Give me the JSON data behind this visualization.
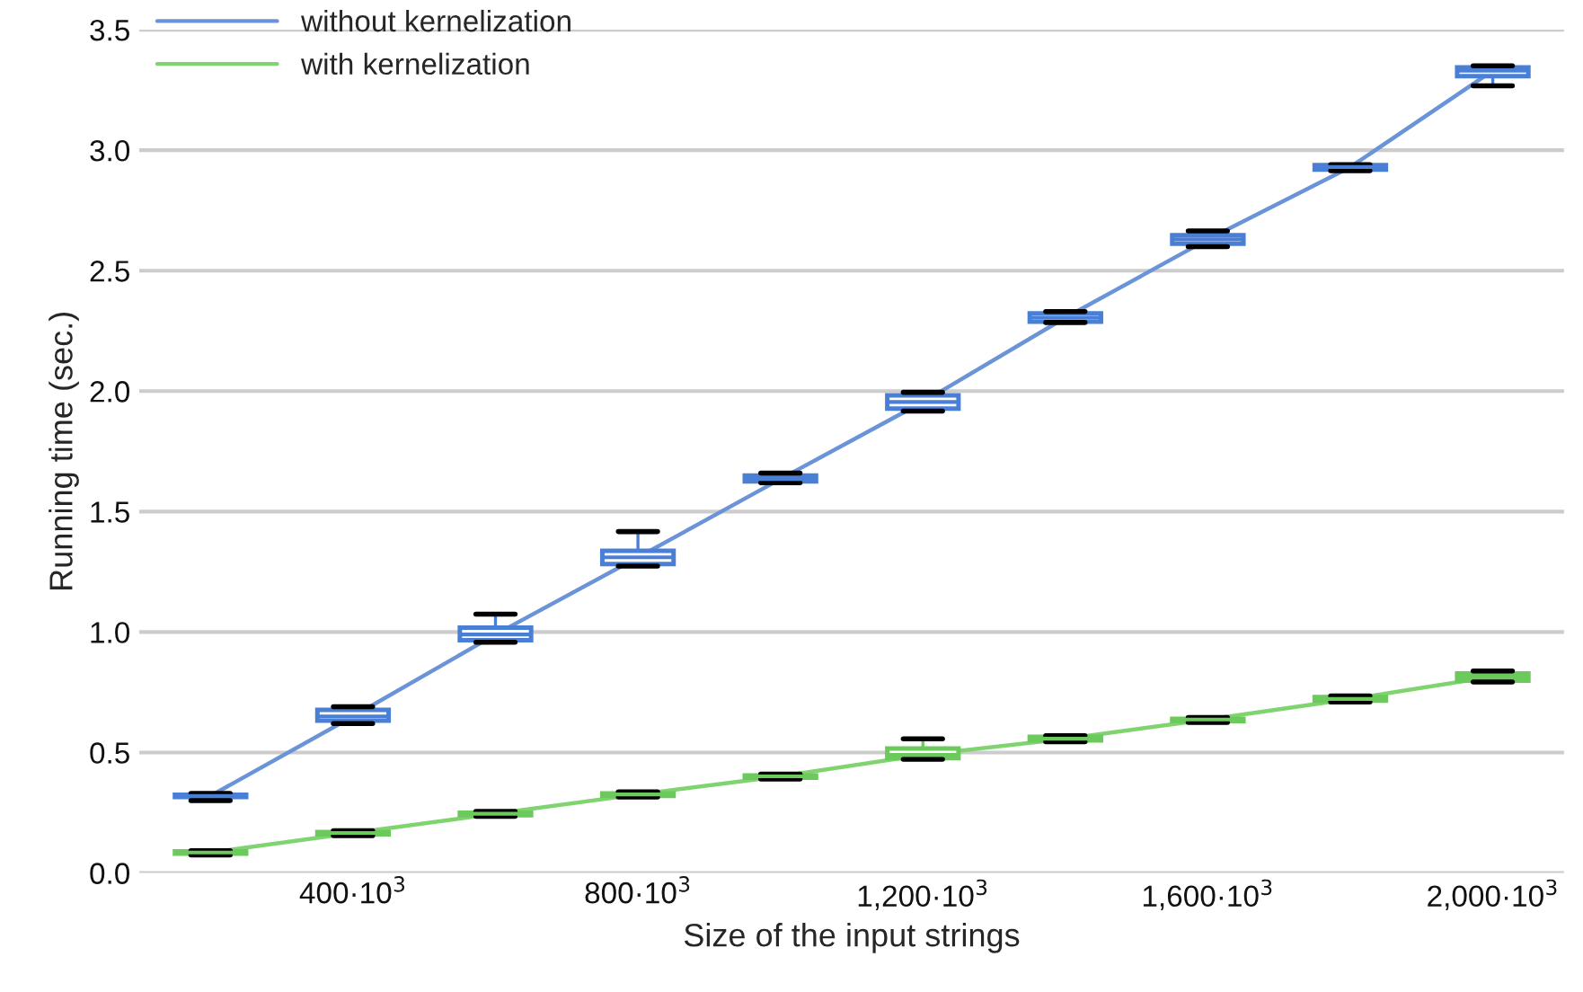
{
  "chart_data": {
    "type": "box",
    "xlabel": "Size of the input strings",
    "ylabel": "Running time (sec.)",
    "x": [
      200000,
      400000,
      600000,
      800000,
      1000000,
      1200000,
      1400000,
      1600000,
      1800000,
      2000000
    ],
    "xlim": [
      100000,
      2100000
    ],
    "xticks": [
      {
        "value": 400000,
        "label": "400·10$^{3}$"
      },
      {
        "value": 800000,
        "label": "800·10$^{3}$"
      },
      {
        "value": 1200000,
        "label": "1,200·10$^{3}$"
      },
      {
        "value": 1600000,
        "label": "1,600·10$^{3}$"
      },
      {
        "value": 2000000,
        "label": "2,000·10$^{3}$"
      }
    ],
    "ylim": [
      0,
      3.5
    ],
    "yticks": [
      {
        "value": 0,
        "label": "0.0"
      },
      {
        "value": 0.5,
        "label": "0.5"
      },
      {
        "value": 1,
        "label": "1.0"
      },
      {
        "value": 1.5,
        "label": "1.5"
      },
      {
        "value": 2,
        "label": "2.0"
      },
      {
        "value": 2.5,
        "label": "2.5"
      },
      {
        "value": 3,
        "label": "3.0"
      },
      {
        "value": 3.5,
        "label": "3.5"
      }
    ],
    "grid": "y",
    "legend": "top left",
    "series": [
      {
        "type": "line",
        "name": "without kernelization",
        "color": "#6a93d8",
        "values": [
          0.32,
          0.65,
          0.99,
          1.31,
          1.635,
          1.955,
          2.305,
          2.63,
          2.93,
          3.33
        ]
      },
      {
        "type": "line",
        "name": "with kernelization",
        "color": "#7fd46f",
        "values": [
          0.085,
          0.166,
          0.246,
          0.326,
          0.401,
          0.49,
          0.557,
          0.637,
          0.722,
          0.815
        ]
      },
      {
        "color": "#4a7fd6",
        "boxes": [
          {
            "low": 0.3,
            "q1": 0.315,
            "median": 0.32,
            "q3": 0.325,
            "high": 0.33
          },
          {
            "low": 0.62,
            "q1": 0.632,
            "median": 0.65,
            "q3": 0.677,
            "high": 0.69
          },
          {
            "low": 0.958,
            "q1": 0.966,
            "median": 0.99,
            "q3": 1.018,
            "high": 1.074
          },
          {
            "low": 1.274,
            "q1": 1.282,
            "median": 1.31,
            "q3": 1.337,
            "high": 1.417
          },
          {
            "low": 1.62,
            "q1": 1.625,
            "median": 1.635,
            "q3": 1.65,
            "high": 1.66
          },
          {
            "low": 1.917,
            "q1": 1.927,
            "median": 1.955,
            "q3": 1.982,
            "high": 1.995
          },
          {
            "low": 2.285,
            "q1": 2.288,
            "median": 2.305,
            "q3": 2.323,
            "high": 2.33
          },
          {
            "low": 2.6,
            "q1": 2.612,
            "median": 2.63,
            "q3": 2.647,
            "high": 2.665
          },
          {
            "low": 2.915,
            "q1": 2.92,
            "median": 2.93,
            "q3": 2.938,
            "high": 2.94
          },
          {
            "low": 3.267,
            "q1": 3.307,
            "median": 3.33,
            "q3": 3.344,
            "high": 3.35
          }
        ]
      },
      {
        "color": "#6cc95c",
        "boxes": [
          {
            "low": 0.075,
            "q1": 0.08,
            "median": 0.085,
            "q3": 0.09,
            "high": 0.092
          },
          {
            "low": 0.155,
            "q1": 0.16,
            "median": 0.166,
            "q3": 0.17,
            "high": 0.175
          },
          {
            "low": 0.235,
            "q1": 0.24,
            "median": 0.246,
            "q3": 0.25,
            "high": 0.255
          },
          {
            "low": 0.315,
            "q1": 0.32,
            "median": 0.326,
            "q3": 0.33,
            "high": 0.337
          },
          {
            "low": 0.39,
            "q1": 0.395,
            "median": 0.401,
            "q3": 0.405,
            "high": 0.41
          },
          {
            "low": 0.472,
            "q1": 0.477,
            "median": 0.49,
            "q3": 0.517,
            "high": 0.557
          },
          {
            "low": 0.545,
            "q1": 0.55,
            "median": 0.557,
            "q3": 0.565,
            "high": 0.57
          },
          {
            "low": 0.625,
            "q1": 0.63,
            "median": 0.637,
            "q3": 0.64,
            "high": 0.645
          },
          {
            "low": 0.71,
            "q1": 0.715,
            "median": 0.722,
            "q3": 0.73,
            "high": 0.735
          },
          {
            "low": 0.793,
            "q1": 0.798,
            "median": 0.815,
            "q3": 0.828,
            "high": 0.838
          }
        ]
      }
    ]
  }
}
